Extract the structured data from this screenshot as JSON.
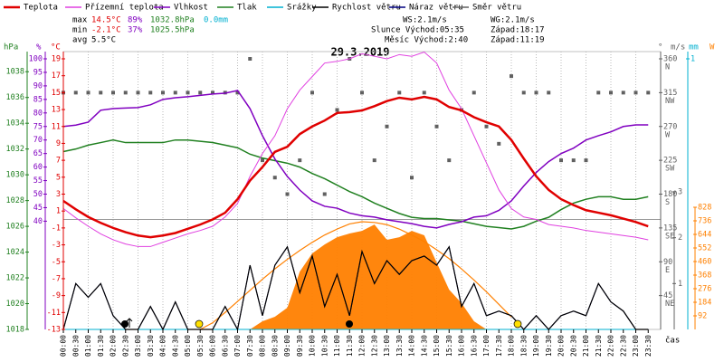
{
  "chart_data": {
    "type": "line",
    "title": "29.3.2019",
    "x_label": "čas",
    "x": [
      "00:00",
      "00:30",
      "01:00",
      "01:30",
      "02:00",
      "02:30",
      "03:00",
      "03:30",
      "04:00",
      "04:30",
      "05:00",
      "05:30",
      "06:00",
      "06:30",
      "07:00",
      "07:30",
      "08:00",
      "08:30",
      "09:00",
      "09:30",
      "10:00",
      "10:30",
      "11:00",
      "11:30",
      "12:00",
      "12:30",
      "13:00",
      "13:30",
      "14:00",
      "14:30",
      "15:00",
      "15:30",
      "16:00",
      "16:30",
      "17:00",
      "17:30",
      "18:00",
      "18:30",
      "19:00",
      "19:30",
      "20:00",
      "20:30",
      "21:00",
      "21:30",
      "22:00",
      "22:30",
      "23:00",
      "23:30"
    ],
    "axes": {
      "pressure": {
        "unit": "hPa",
        "color": "#208020",
        "lim": [
          1018,
          1039
        ],
        "ticks": [
          1018,
          1020,
          1022,
          1024,
          1026,
          1028,
          1030,
          1032,
          1034,
          1036,
          1038
        ]
      },
      "humidity": {
        "unit": "%",
        "color": "#8000c0",
        "lim": [
          0,
          100
        ],
        "ticks": [
          40,
          45,
          50,
          55,
          60,
          65,
          70,
          75,
          80,
          85,
          90,
          95,
          100
        ]
      },
      "temperature": {
        "unit": "°C",
        "color": "#e00000",
        "lim": [
          -13,
          19
        ],
        "ticks": [
          -13,
          -11,
          -9,
          -7,
          -5,
          -3,
          -1,
          1,
          3,
          5,
          7,
          9,
          11,
          13,
          15,
          17,
          19
        ]
      },
      "direction": {
        "unit": "°",
        "color": "#606060",
        "lim": [
          0,
          360
        ],
        "ticks": [
          45,
          90,
          135,
          180,
          225,
          270,
          315,
          360
        ],
        "tick_names": [
          "NE",
          "E",
          "SE",
          "S",
          "SW",
          "W",
          "NW",
          "N"
        ]
      },
      "wind": {
        "unit": "m/s",
        "color": "#606060",
        "lim": [
          0,
          3
        ],
        "ticks": [
          1,
          2,
          3
        ]
      },
      "precip": {
        "unit": "mm",
        "color": "#00b0d0",
        "lim": [
          0,
          1
        ],
        "ticks": [
          1
        ]
      },
      "solar": {
        "unit": "W",
        "color": "#ff8000",
        "lim": [
          0,
          828
        ],
        "ticks": [
          92,
          184,
          276,
          368,
          460,
          552,
          644,
          736,
          828
        ]
      }
    },
    "series": [
      {
        "name": "Teplota",
        "color": "#e00000",
        "axis": "temperature",
        "width": 2.5,
        "values": [
          2.2,
          1.2,
          0.3,
          -0.4,
          -1.0,
          -1.5,
          -1.9,
          -2.1,
          -1.9,
          -1.6,
          -1.1,
          -0.6,
          0.0,
          0.8,
          2.4,
          4.6,
          6.2,
          8.0,
          8.6,
          10.1,
          11.0,
          11.7,
          12.6,
          12.7,
          12.9,
          13.4,
          14.0,
          14.4,
          14.2,
          14.5,
          14.2,
          13.3,
          12.9,
          12.1,
          11.5,
          11.0,
          9.4,
          7.2,
          5.1,
          3.5,
          2.4,
          1.7,
          1.1,
          0.8,
          0.5,
          0.1,
          -0.3,
          -0.8
        ]
      },
      {
        "name": "Přízemní teplota",
        "color": "#e040e0",
        "axis": "temperature",
        "width": 1,
        "values": [
          1.3,
          0.2,
          -0.8,
          -1.7,
          -2.4,
          -2.9,
          -3.2,
          -3.2,
          -2.7,
          -2.2,
          -1.7,
          -1.3,
          -0.8,
          0.3,
          1.9,
          5.1,
          7.8,
          9.9,
          13.1,
          15.3,
          16.9,
          18.5,
          18.7,
          19.0,
          19.6,
          19.3,
          19.0,
          19.5,
          19.3,
          19.8,
          18.5,
          15.3,
          13.1,
          9.9,
          6.7,
          3.5,
          1.3,
          0.3,
          0.0,
          -0.6,
          -0.8,
          -1.0,
          -1.3,
          -1.5,
          -1.7,
          -1.9,
          -2.1,
          -2.4
        ]
      },
      {
        "name": "Vlhkost",
        "color": "#8000c0",
        "axis": "humidity",
        "width": 1.5,
        "values": [
          75,
          75.5,
          76.6,
          81,
          81.6,
          81.8,
          82,
          83,
          85,
          85.6,
          86,
          86.5,
          87,
          87.3,
          88.3,
          81.6,
          71.6,
          63,
          56.5,
          51.5,
          47.5,
          45.5,
          44.8,
          43,
          42,
          41.5,
          40.5,
          39.8,
          39.1,
          38.1,
          37.5,
          38.8,
          39.8,
          41.5,
          42,
          44,
          47.5,
          53,
          58,
          62,
          65,
          67,
          70,
          71.6,
          73,
          75,
          75.6,
          75.6
        ]
      },
      {
        "name": "Tlak",
        "color": "#208020",
        "axis": "pressure",
        "width": 1.5,
        "values": [
          1031.8,
          1032.0,
          1032.3,
          1032.5,
          1032.7,
          1032.5,
          1032.5,
          1032.5,
          1032.5,
          1032.7,
          1032.7,
          1032.6,
          1032.5,
          1032.3,
          1032.1,
          1031.6,
          1031.3,
          1031.1,
          1030.9,
          1030.6,
          1030.1,
          1029.7,
          1029.2,
          1028.7,
          1028.3,
          1027.8,
          1027.4,
          1027.0,
          1026.7,
          1026.6,
          1026.6,
          1026.5,
          1026.4,
          1026.2,
          1026.0,
          1025.9,
          1025.8,
          1026.0,
          1026.4,
          1026.7,
          1027.3,
          1027.8,
          1028.1,
          1028.3,
          1028.3,
          1028.1,
          1028.1,
          1028.3
        ]
      },
      {
        "name": "Srážky",
        "color": "#00b0d0",
        "axis": "precip",
        "width": 1,
        "values": [
          0,
          0,
          0,
          0,
          0,
          0,
          0,
          0,
          0,
          0,
          0,
          0,
          0,
          0,
          0,
          0,
          0,
          0,
          0,
          0,
          0,
          0,
          0,
          0,
          0,
          0,
          0,
          0,
          0,
          0,
          0,
          0,
          0,
          0,
          0,
          0,
          0,
          0,
          0,
          0,
          0,
          0,
          0,
          0,
          0,
          0,
          0,
          0
        ]
      },
      {
        "name": "Rychlost větru",
        "color": "#000000",
        "axis": "wind",
        "width": 1.2,
        "values": [
          0,
          1,
          0.7,
          1,
          0.3,
          0,
          0,
          0.5,
          0,
          0.6,
          0,
          0,
          0,
          0.5,
          0,
          1.4,
          0.3,
          1.4,
          1.8,
          0.8,
          1.6,
          0.5,
          1.2,
          0.3,
          1.7,
          1.0,
          1.5,
          1.2,
          1.5,
          1.6,
          1.4,
          1.8,
          0.5,
          1.0,
          0.3,
          0.4,
          0.3,
          0,
          0.3,
          0,
          0.3,
          0.4,
          0.3,
          1.0,
          0.6,
          0.4,
          0,
          0
        ]
      },
      {
        "name": "Náraz větru",
        "color": "#000080",
        "axis": "wind",
        "width": 1,
        "values": [
          0,
          1,
          0.7,
          1,
          0.3,
          0,
          0,
          0.5,
          0,
          0.6,
          0,
          0,
          0,
          0.5,
          0,
          1.4,
          0.3,
          1.4,
          1.8,
          0.8,
          1.6,
          0.5,
          1.2,
          0.3,
          1.7,
          1.0,
          1.5,
          1.2,
          1.5,
          1.6,
          1.4,
          1.8,
          0.5,
          1.0,
          0.3,
          0.4,
          0.3,
          0,
          0.3,
          0,
          0.3,
          0.4,
          0.3,
          1.0,
          0.6,
          0.4,
          0,
          0
        ]
      },
      {
        "name": "Směr větru",
        "color": "#606060",
        "axis": "direction",
        "marker": "square",
        "values": [
          315,
          315,
          315,
          315,
          315,
          315,
          315,
          315,
          315,
          315,
          315,
          315,
          315,
          315,
          315,
          360,
          225,
          202,
          180,
          225,
          315,
          180,
          292,
          360,
          315,
          225,
          270,
          315,
          202,
          315,
          270,
          225,
          292,
          315,
          270,
          247,
          337,
          315,
          315,
          315,
          225,
          225,
          225,
          315,
          315,
          315,
          315,
          315
        ]
      }
    ],
    "solar": {
      "color": "#ff8000",
      "axis": "solar",
      "values": [
        0,
        0,
        0,
        0,
        0,
        0,
        0,
        0,
        0,
        0,
        0,
        0,
        0,
        0,
        0,
        0,
        55,
        86,
        147,
        392,
        515,
        576,
        625,
        650,
        668,
        711,
        607,
        625,
        668,
        638,
        454,
        270,
        178,
        55,
        0,
        0,
        0,
        0,
        0,
        0,
        0,
        0,
        0,
        0,
        0,
        0,
        0,
        0
      ]
    },
    "sun_curve": {
      "color": "#ff8000",
      "axis": "solar",
      "values": [
        null,
        null,
        null,
        null,
        null,
        null,
        null,
        null,
        null,
        null,
        null,
        0,
        45,
        115,
        190,
        265,
        340,
        410,
        475,
        535,
        590,
        640,
        680,
        715,
        730,
        725,
        710,
        680,
        640,
        595,
        540,
        480,
        410,
        335,
        255,
        170,
        85,
        null,
        null,
        null,
        null,
        null,
        null,
        null,
        null,
        null,
        null,
        null
      ]
    },
    "stats": [
      {
        "label": "max",
        "values": [
          "14.5°C",
          "89%",
          "1032.8hPa",
          "0.0mm"
        ]
      },
      {
        "label": "min",
        "values": [
          "-2.1°C",
          "37%",
          "1025.5hPa"
        ]
      },
      {
        "label": "avg",
        "values": [
          "5.5°C"
        ]
      }
    ],
    "wind_summary": [
      "WS:2.1m/s",
      "WG:2.1m/s"
    ],
    "sun": [
      "Slunce Východ:05:35",
      "Západ:18:17"
    ],
    "moon": [
      "Měsíc Východ:2:40",
      "Západ:11:19"
    ]
  }
}
